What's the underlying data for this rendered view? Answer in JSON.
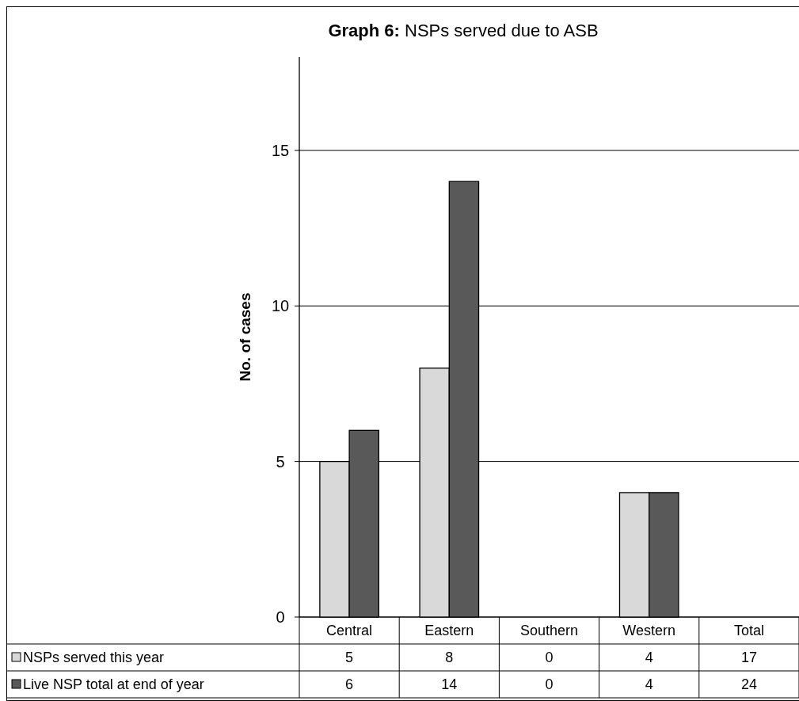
{
  "chart_data": {
    "type": "bar",
    "title": "Graph 6: NSPs served due to ASB",
    "ylabel": "No. of cases",
    "categories": [
      "Central",
      "Eastern",
      "Southern",
      "Western",
      "Total"
    ],
    "series": [
      {
        "name": "NSPs served this year",
        "color": "#d9d9d9",
        "values": [
          5,
          8,
          0,
          4,
          null
        ],
        "value_labels": [
          "5",
          "8",
          "0",
          "4",
          "17"
        ]
      },
      {
        "name": "Live NSP total at end of year",
        "color": "#595959",
        "values": [
          6,
          14,
          0,
          4,
          null
        ],
        "value_labels": [
          "6",
          "14",
          "0",
          "4",
          "24"
        ]
      }
    ],
    "ylim": [
      0,
      18
    ],
    "yticks": [
      0,
      5,
      10,
      15
    ],
    "grid": "y",
    "legend": "bottom"
  }
}
